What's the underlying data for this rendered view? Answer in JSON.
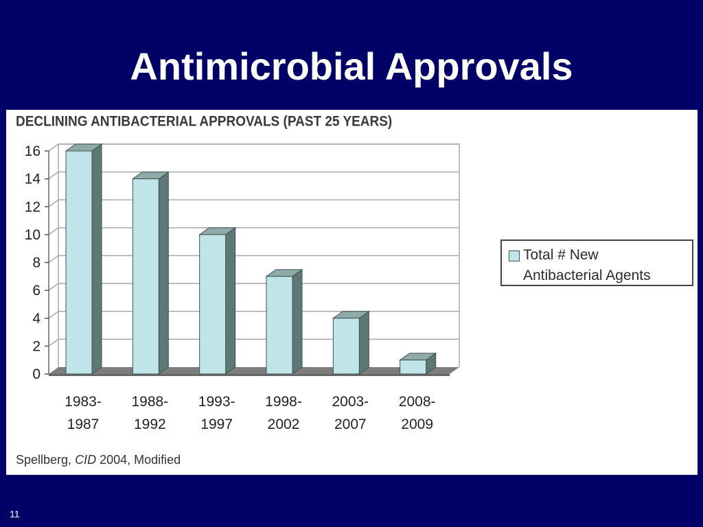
{
  "slide": {
    "title": "Antimicrobial Approvals",
    "page_number": "11",
    "source_prefix": "Spellberg, ",
    "source_journal": "CID",
    "source_suffix": " 2004, Modified"
  },
  "chart_data": {
    "type": "bar",
    "title": "DECLINING ANTIBACTERIAL APPROVALS  (PAST 25 YEARS)",
    "categories": [
      [
        "1983-",
        "1987"
      ],
      [
        "1988-",
        "1992"
      ],
      [
        "1993-",
        "1997"
      ],
      [
        "1998-",
        "2002"
      ],
      [
        "2003-",
        "2007"
      ],
      [
        "2008-",
        "2009"
      ]
    ],
    "series": [
      {
        "name": "Total # New Antibacterial Agents",
        "values": [
          16,
          14,
          10,
          7,
          4,
          1
        ]
      }
    ],
    "legend": {
      "line1": "Total # New",
      "line2": "Antibacterial Agents",
      "position": "right"
    },
    "ylim": [
      0,
      16
    ],
    "yticks": [
      "0",
      "2",
      "4",
      "6",
      "8",
      "10",
      "12",
      "14",
      "16"
    ],
    "grid": true,
    "colors": {
      "bar_front": "#bfe5e8",
      "bar_side": "#5f7876",
      "bar_top": "#8faaa8",
      "floor": "#7d7d7d",
      "grid": "#a8a8a8"
    }
  }
}
